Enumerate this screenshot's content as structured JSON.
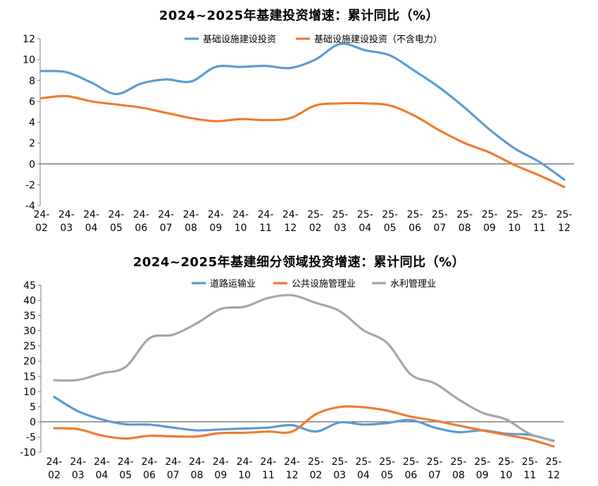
{
  "chart_data": [
    {
      "type": "line",
      "title": "2024~2025年基建投资增速：累计同比（%）",
      "categories": [
        "24-\n02",
        "24-\n03",
        "24-\n04",
        "24-\n05",
        "24-\n06",
        "24-\n07",
        "24-\n08",
        "24-\n09",
        "24-\n10",
        "24-\n11",
        "24-\n12",
        "25-\n02",
        "25-\n03",
        "25-\n04",
        "25-\n05",
        "25-\n06",
        "25-\n07",
        "25-\n08",
        "25-\n09",
        "25-\n10",
        "25-\n11",
        "25-\n12"
      ],
      "ylim": [
        -4,
        12
      ],
      "yticks": [
        -4,
        -2,
        0,
        2,
        4,
        6,
        8,
        10,
        12
      ],
      "legend_position": "top",
      "series": [
        {
          "name": "基础设施建设投资",
          "color": "#5B9BD5",
          "values": [
            8.9,
            8.8,
            7.8,
            6.7,
            7.7,
            8.1,
            7.9,
            9.3,
            9.3,
            9.4,
            9.2,
            10.0,
            11.5,
            10.9,
            10.4,
            8.9,
            7.3,
            5.4,
            3.3,
            1.5,
            0.2,
            -1.5
          ]
        },
        {
          "name": "基础设施建设投资（不含电力）",
          "color": "#ED7D31",
          "values": [
            6.3,
            6.5,
            6.0,
            5.7,
            5.4,
            4.9,
            4.4,
            4.1,
            4.3,
            4.2,
            4.4,
            5.6,
            5.8,
            5.8,
            5.6,
            4.6,
            3.2,
            2.0,
            1.1,
            -0.1,
            -1.1,
            -2.2
          ]
        }
      ]
    },
    {
      "type": "line",
      "title": "2024~2025年基建细分领域投资增速：累计同比（%）",
      "categories": [
        "24-\n02",
        "24-\n03",
        "24-\n04",
        "24-\n05",
        "24-\n06",
        "24-\n07",
        "24-\n08",
        "24-\n09",
        "24-\n10",
        "24-\n11",
        "24-\n12",
        "25-\n02",
        "25-\n03",
        "25-\n04",
        "25-\n05",
        "25-\n06",
        "25-\n07",
        "25-\n08",
        "25-\n09",
        "25-\n10",
        "25-\n11",
        "25-\n12"
      ],
      "ylim": [
        -10,
        45
      ],
      "yticks": [
        -10,
        -5,
        0,
        5,
        10,
        15,
        20,
        25,
        30,
        35,
        40,
        45
      ],
      "legend_position": "top",
      "series": [
        {
          "name": "道路运输业",
          "color": "#5B9BD5",
          "values": [
            8.2,
            3.5,
            0.8,
            -0.8,
            -0.9,
            -1.9,
            -2.8,
            -2.5,
            -2.2,
            -1.9,
            -1.1,
            -3.2,
            -0.2,
            -0.9,
            -0.4,
            0.6,
            -1.9,
            -3.4,
            -2.8,
            -3.9,
            -4.3,
            -6.3
          ]
        },
        {
          "name": "公共设施管理业",
          "color": "#ED7D31",
          "values": [
            -2.1,
            -2.4,
            -4.5,
            -5.5,
            -4.6,
            -4.8,
            -4.8,
            -3.7,
            -3.6,
            -3.2,
            -3.2,
            2.5,
            4.9,
            4.8,
            3.7,
            1.7,
            0.4,
            -1.2,
            -2.8,
            -4.3,
            -5.8,
            -8.1
          ]
        },
        {
          "name": "水利管理业",
          "color": "#A5A5A5",
          "values": [
            13.7,
            13.8,
            16.0,
            18.1,
            27.5,
            28.7,
            32.5,
            37.2,
            37.9,
            40.8,
            41.7,
            39.2,
            36.5,
            30.2,
            26.0,
            15.6,
            12.7,
            7.4,
            3.0,
            0.8,
            -4.0,
            -6.2
          ]
        }
      ]
    }
  ]
}
